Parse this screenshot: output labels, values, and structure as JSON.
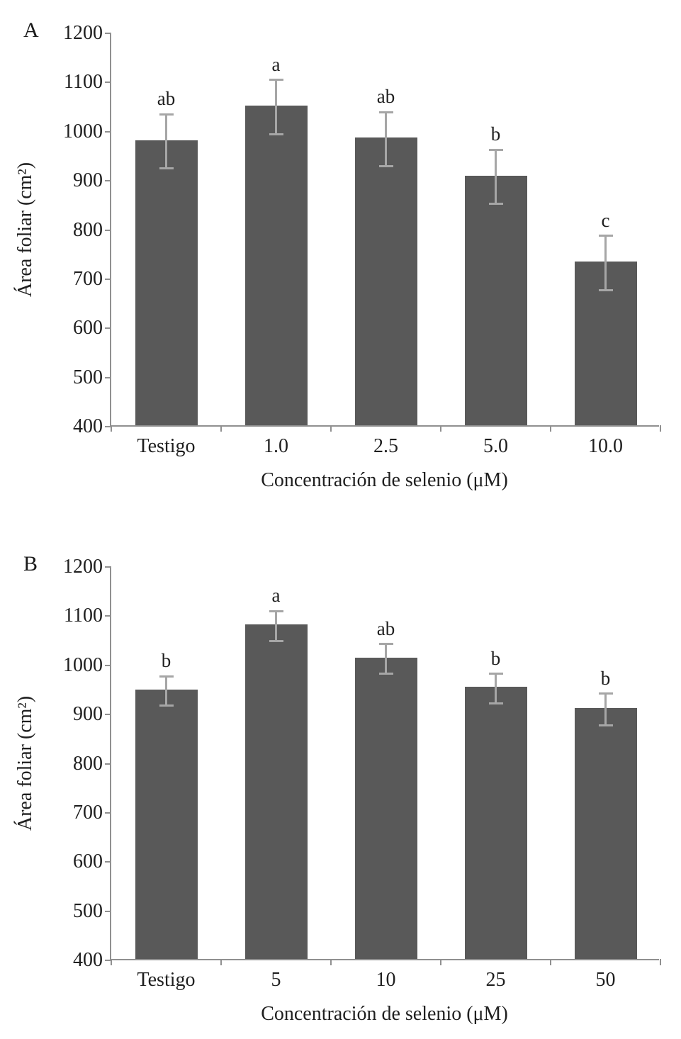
{
  "page": {
    "background": "#ffffff"
  },
  "chart_data": [
    {
      "type": "bar",
      "panel_label": "A",
      "title": "",
      "categories": [
        "Testigo",
        "1.0",
        "2.5",
        "5.0",
        "10.0"
      ],
      "values": [
        980,
        1050,
        985,
        908,
        733
      ],
      "errors": [
        55,
        55,
        55,
        55,
        55
      ],
      "sig_letters": [
        "ab",
        "a",
        "ab",
        "b",
        "c"
      ],
      "ylabel": "Área foliar (cm²)",
      "xlabel": "Concentración de selenio (μM)",
      "ylim": [
        400,
        1200
      ],
      "ytick_step": 100,
      "bar_color": "#595959",
      "error_color": "#a6a6a6",
      "grid": false,
      "legend": "none"
    },
    {
      "type": "bar",
      "panel_label": "B",
      "title": "",
      "categories": [
        "Testigo",
        "5",
        "10",
        "25",
        "50"
      ],
      "values": [
        948,
        1080,
        1013,
        953,
        910
      ],
      "errors": [
        30,
        30,
        30,
        30,
        32
      ],
      "sig_letters": [
        "b",
        "a",
        "ab",
        "b",
        "b"
      ],
      "ylabel": "Área foliar (cm²)",
      "xlabel": "Concentración de selenio (μM)",
      "ylim": [
        400,
        1200
      ],
      "ytick_step": 100,
      "bar_color": "#595959",
      "error_color": "#a6a6a6",
      "grid": false,
      "legend": "none"
    }
  ]
}
